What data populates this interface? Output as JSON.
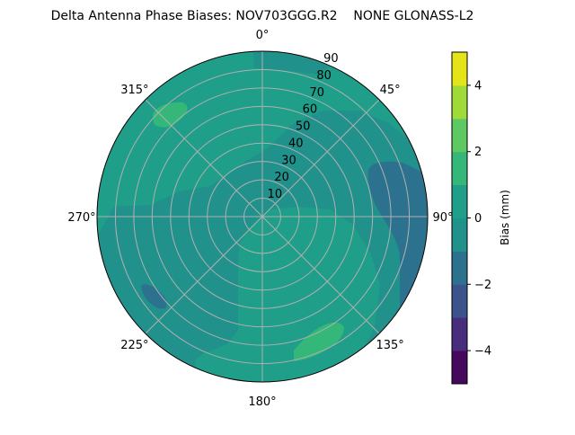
{
  "chart_data": {
    "type": "heatmap",
    "subtype": "polar-filled-contour",
    "title": "Delta Antenna Phase Biases: NOV703GGG.R2    NONE GLONASS-L2",
    "angular_ticks": [
      "0°",
      "45°",
      "90°",
      "135°",
      "180°",
      "225°",
      "270°",
      "315°"
    ],
    "angular_direction": "clockwise, 0° at top",
    "radial_ticks": [
      "10",
      "20",
      "30",
      "40",
      "50",
      "60",
      "70",
      "80",
      "90"
    ],
    "radial_range": [
      0,
      90
    ],
    "grid": true,
    "colorbar": {
      "label": "Bias (mm)",
      "range": [
        -5,
        5
      ],
      "ticks": [
        "−4",
        "−2",
        "0",
        "2",
        "4"
      ],
      "tick_values": [
        -4,
        -2,
        0,
        2,
        4
      ],
      "levels": [
        -5,
        -4,
        -3,
        -2,
        -1,
        0,
        1,
        2,
        3,
        4,
        5
      ],
      "colors": [
        "#46085c",
        "#472d7b",
        "#3b528b",
        "#2c728e",
        "#21918c",
        "#1f9e89",
        "#35b779",
        "#5ec962",
        "#a0da39",
        "#e4e419"
      ],
      "colormap": "viridis"
    },
    "field_summary": {
      "dominant_level": [
        0,
        1
      ],
      "regions": [
        {
          "level": [
            -1,
            0
          ],
          "where": "center, west and north-east sectors, top cap near 0-30° azimuth"
        },
        {
          "level": [
            -2,
            -1
          ],
          "where": "east edge around 70-110° azimuth; small patch near 240° at elevation ~60"
        },
        {
          "level": [
            1,
            2
          ],
          "where": "patch near 315° at elevation ~75; patch near 160° at elevation ~75"
        }
      ]
    }
  }
}
